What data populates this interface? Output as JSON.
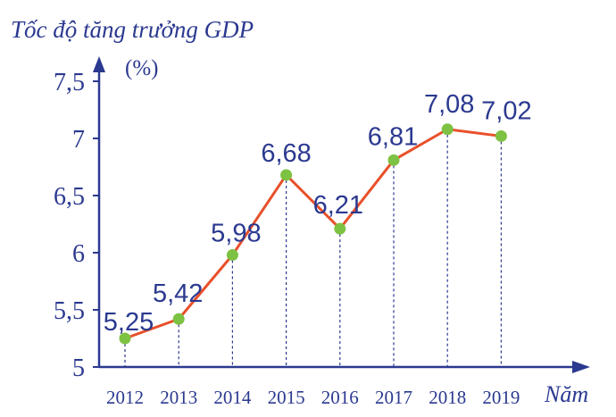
{
  "chart_data": {
    "type": "line",
    "title": "Tốc độ tăng trưởng GDP",
    "ylabel": "(%)",
    "xlabel": "Năm",
    "categories": [
      "2012",
      "2013",
      "2014",
      "2015",
      "2016",
      "2017",
      "2018",
      "2019"
    ],
    "values": [
      5.25,
      5.42,
      5.98,
      6.68,
      6.21,
      6.81,
      7.08,
      7.02
    ],
    "data_labels": [
      "5,25",
      "5,42",
      "5,98",
      "6,68",
      "6,21",
      "6,81",
      "7,08",
      "7,02"
    ],
    "yticks": [
      5,
      5.5,
      6,
      6.5,
      7,
      7.5
    ],
    "ytick_labels": [
      "5",
      "5,5",
      "6",
      "6,5",
      "7",
      "7,5"
    ],
    "ylim": [
      5,
      7.5
    ],
    "grid": false,
    "colors": {
      "axis": "#2b3990",
      "line": "#e8502a",
      "marker": "#7dc242",
      "guide": "#2b3990"
    }
  }
}
